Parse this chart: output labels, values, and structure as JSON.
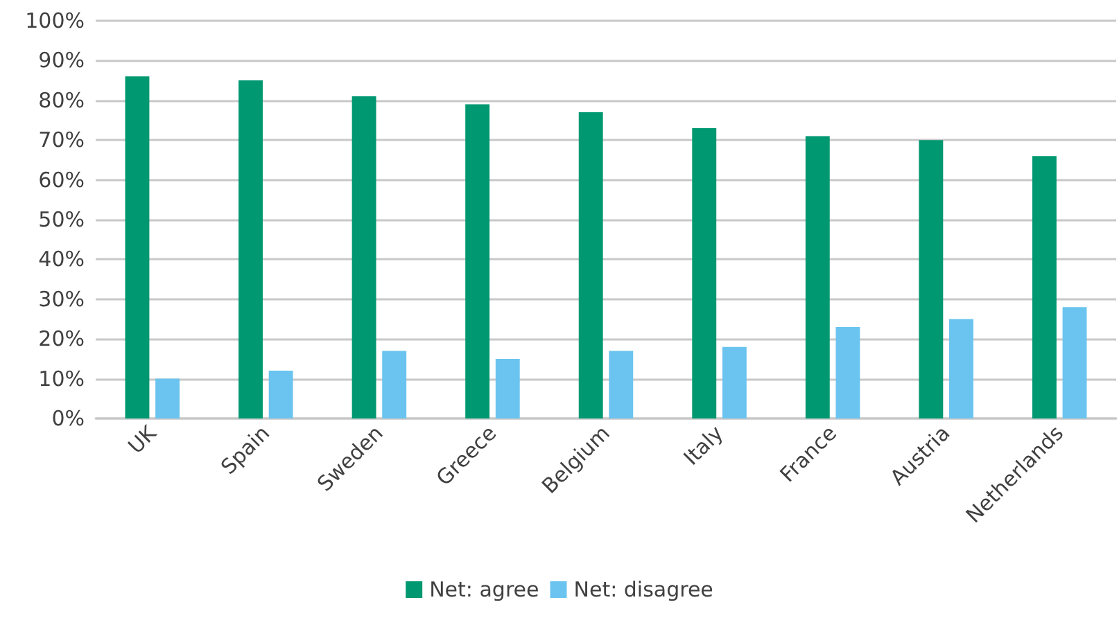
{
  "chart_data": {
    "type": "bar",
    "categories": [
      "UK",
      "Spain",
      "Sweden",
      "Greece",
      "Belgium",
      "Italy",
      "France",
      "Austria",
      "Netherlands"
    ],
    "series": [
      {
        "name": "Net: agree",
        "color": "#009870",
        "values": [
          86,
          85,
          81,
          79,
          77,
          73,
          71,
          70,
          66
        ]
      },
      {
        "name": "Net: disagree",
        "color": "#6ac4ef",
        "values": [
          10,
          12,
          17,
          15,
          17,
          18,
          23,
          25,
          28
        ]
      }
    ],
    "ylim": [
      0,
      100
    ],
    "yticks": [
      {
        "value": 0,
        "label": "0%"
      },
      {
        "value": 10,
        "label": "10%"
      },
      {
        "value": 20,
        "label": "20%"
      },
      {
        "value": 30,
        "label": "30%"
      },
      {
        "value": 40,
        "label": "40%"
      },
      {
        "value": 50,
        "label": "50%"
      },
      {
        "value": 60,
        "label": "60%"
      },
      {
        "value": 70,
        "label": "70%"
      },
      {
        "value": 80,
        "label": "80%"
      },
      {
        "value": 90,
        "label": "90%"
      },
      {
        "value": 100,
        "label": "100%"
      }
    ],
    "grid": "y",
    "legend": "bottom"
  }
}
